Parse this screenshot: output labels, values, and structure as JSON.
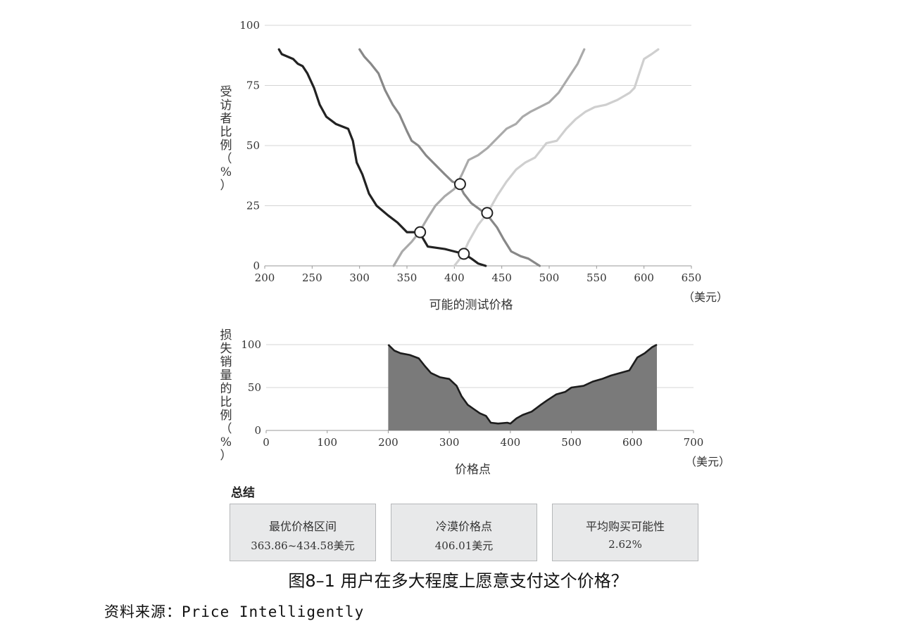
{
  "chart_data": [
    {
      "type": "line",
      "xlabel": "可能的测试价格",
      "ylabel": "受访者比例（%）",
      "x_unit": "（美元）",
      "xlim": [
        200,
        650
      ],
      "ylim": [
        0,
        100
      ],
      "xticks": [
        200,
        250,
        300,
        350,
        400,
        450,
        500,
        550,
        600,
        650
      ],
      "yticks": [
        0,
        25,
        50,
        75,
        100
      ],
      "grid": "horizontal",
      "series": [
        {
          "color": "#222222",
          "points": [
            [
              215,
              90
            ],
            [
              218,
              88
            ],
            [
              230,
              86
            ],
            [
              235,
              84
            ],
            [
              240,
              83
            ],
            [
              245,
              80
            ],
            [
              252,
              74
            ],
            [
              258,
              67
            ],
            [
              265,
              62
            ],
            [
              275,
              59
            ],
            [
              288,
              57
            ],
            [
              293,
              52
            ],
            [
              297,
              43
            ],
            [
              303,
              38
            ],
            [
              310,
              30
            ],
            [
              318,
              25
            ],
            [
              330,
              21
            ],
            [
              340,
              18
            ],
            [
              350,
              14
            ],
            [
              363,
              14
            ],
            [
              372,
              8
            ],
            [
              390,
              7
            ],
            [
              400,
              6
            ],
            [
              410,
              5
            ],
            [
              418,
              3
            ],
            [
              425,
              1
            ],
            [
              433,
              0
            ]
          ]
        },
        {
          "color": "#888888",
          "points": [
            [
              300,
              90
            ],
            [
              305,
              87
            ],
            [
              312,
              84
            ],
            [
              320,
              80
            ],
            [
              327,
              73
            ],
            [
              335,
              67
            ],
            [
              342,
              63
            ],
            [
              350,
              56
            ],
            [
              355,
              52
            ],
            [
              362,
              50
            ],
            [
              370,
              46
            ],
            [
              380,
              42
            ],
            [
              390,
              38
            ],
            [
              398,
              35
            ],
            [
              405,
              34
            ],
            [
              410,
              30
            ],
            [
              418,
              26
            ],
            [
              425,
              24
            ],
            [
              435,
              21
            ],
            [
              445,
              16
            ],
            [
              452,
              11
            ],
            [
              460,
              6
            ],
            [
              470,
              4
            ],
            [
              478,
              3
            ],
            [
              490,
              0
            ]
          ]
        },
        {
          "color": "#aaaaaa",
          "points": [
            [
              336,
              0
            ],
            [
              345,
              6
            ],
            [
              355,
              10
            ],
            [
              363,
              14
            ],
            [
              372,
              20
            ],
            [
              380,
              25
            ],
            [
              390,
              29
            ],
            [
              400,
              32
            ],
            [
              408,
              38
            ],
            [
              415,
              44
            ],
            [
              425,
              46
            ],
            [
              435,
              49
            ],
            [
              445,
              53
            ],
            [
              455,
              57
            ],
            [
              465,
              59
            ],
            [
              472,
              62
            ],
            [
              480,
              64
            ],
            [
              490,
              66
            ],
            [
              500,
              68
            ],
            [
              510,
              72
            ],
            [
              520,
              78
            ],
            [
              530,
              84
            ],
            [
              537,
              90
            ]
          ]
        },
        {
          "color": "#cfcfcf",
          "points": [
            [
              400,
              0
            ],
            [
              408,
              4
            ],
            [
              415,
              10
            ],
            [
              425,
              17
            ],
            [
              435,
              22
            ],
            [
              445,
              29
            ],
            [
              455,
              35
            ],
            [
              465,
              40
            ],
            [
              475,
              43
            ],
            [
              485,
              45
            ],
            [
              497,
              51
            ],
            [
              508,
              52
            ],
            [
              518,
              57
            ],
            [
              528,
              61
            ],
            [
              538,
              64
            ],
            [
              548,
              66
            ],
            [
              560,
              67
            ],
            [
              572,
              69
            ],
            [
              585,
              72
            ],
            [
              590,
              74
            ],
            [
              595,
              80
            ],
            [
              600,
              86
            ],
            [
              608,
              88
            ],
            [
              615,
              90
            ]
          ]
        }
      ],
      "intersections": [
        [
          363.86,
          14
        ],
        [
          406.01,
          34
        ],
        [
          434.58,
          22
        ],
        [
          410,
          5
        ]
      ]
    },
    {
      "type": "area",
      "xlabel": "价格点",
      "ylabel": "损失销量的比例（%）",
      "x_unit": "（美元）",
      "xlim": [
        0,
        700
      ],
      "ylim": [
        0,
        100
      ],
      "xticks": [
        0,
        100,
        200,
        300,
        400,
        500,
        600,
        700
      ],
      "yticks": [
        0,
        50,
        100
      ],
      "grid": "horizontal",
      "color": "#7a7a7a",
      "points": [
        [
          200,
          100
        ],
        [
          210,
          93
        ],
        [
          220,
          90
        ],
        [
          235,
          88
        ],
        [
          250,
          84
        ],
        [
          260,
          75
        ],
        [
          270,
          67
        ],
        [
          285,
          62
        ],
        [
          300,
          60
        ],
        [
          312,
          52
        ],
        [
          320,
          40
        ],
        [
          330,
          30
        ],
        [
          340,
          25
        ],
        [
          350,
          20
        ],
        [
          360,
          17
        ],
        [
          368,
          9
        ],
        [
          380,
          8
        ],
        [
          395,
          9
        ],
        [
          400,
          8
        ],
        [
          410,
          14
        ],
        [
          420,
          18
        ],
        [
          435,
          22
        ],
        [
          450,
          30
        ],
        [
          460,
          35
        ],
        [
          475,
          42
        ],
        [
          490,
          45
        ],
        [
          500,
          50
        ],
        [
          520,
          52
        ],
        [
          535,
          57
        ],
        [
          550,
          60
        ],
        [
          565,
          64
        ],
        [
          580,
          67
        ],
        [
          595,
          70
        ],
        [
          608,
          85
        ],
        [
          620,
          90
        ],
        [
          632,
          97
        ],
        [
          640,
          100
        ]
      ]
    }
  ],
  "summary": {
    "title": "总结",
    "boxes": [
      {
        "label": "最优价格区间",
        "value": "363.86~434.58美元"
      },
      {
        "label": "冷漠价格点",
        "value": "406.01美元"
      },
      {
        "label": "平均购买可能性",
        "value": "2.62%"
      }
    ]
  },
  "caption": "图8–1 用户在多大程度上愿意支付这个价格？",
  "source": "资料来源：Price Intelligently"
}
